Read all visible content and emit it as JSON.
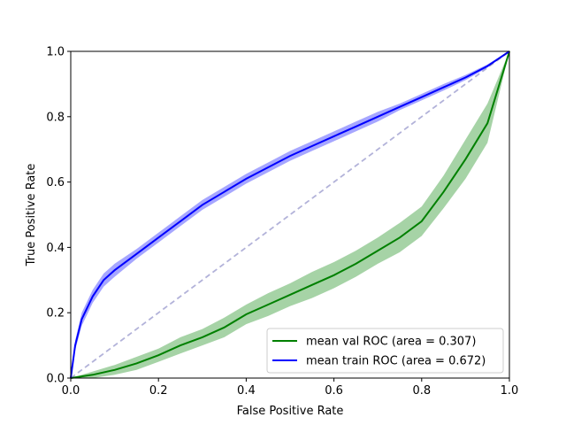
{
  "chart_data": {
    "type": "line",
    "title": "",
    "xlabel": "False Positive Rate",
    "ylabel": "True Positive Rate",
    "xlim": [
      0.0,
      1.0
    ],
    "ylim": [
      0.0,
      1.0
    ],
    "xticks": [
      "0.0",
      "0.2",
      "0.4",
      "0.6",
      "0.8",
      "1.0"
    ],
    "yticks": [
      "0.0",
      "0.2",
      "0.4",
      "0.6",
      "0.8",
      "1.0"
    ],
    "grid": false,
    "legend_position": "lower-right",
    "series": [
      {
        "name": "mean val ROC (area = 0.307)",
        "color": "#008000",
        "band": "±1 std (shaded)",
        "x": [
          0.0,
          0.05,
          0.1,
          0.15,
          0.2,
          0.25,
          0.3,
          0.35,
          0.4,
          0.45,
          0.5,
          0.55,
          0.6,
          0.65,
          0.7,
          0.75,
          0.8,
          0.85,
          0.9,
          0.95,
          1.0
        ],
        "y": [
          0.0,
          0.01,
          0.025,
          0.045,
          0.07,
          0.1,
          0.125,
          0.155,
          0.195,
          0.225,
          0.255,
          0.285,
          0.315,
          0.35,
          0.39,
          0.43,
          0.48,
          0.57,
          0.67,
          0.78,
          1.0
        ],
        "y_std": [
          0.0,
          0.01,
          0.015,
          0.02,
          0.02,
          0.025,
          0.025,
          0.03,
          0.03,
          0.035,
          0.035,
          0.04,
          0.04,
          0.04,
          0.04,
          0.045,
          0.045,
          0.05,
          0.06,
          0.06,
          0.0
        ]
      },
      {
        "name": "mean train ROC (area = 0.672)",
        "color": "#0000ff",
        "band": "±1 std (shaded)",
        "x": [
          0.0,
          0.01,
          0.025,
          0.05,
          0.075,
          0.1,
          0.15,
          0.2,
          0.25,
          0.3,
          0.35,
          0.4,
          0.45,
          0.5,
          0.55,
          0.6,
          0.65,
          0.7,
          0.75,
          0.8,
          0.85,
          0.9,
          0.95,
          1.0
        ],
        "y": [
          0.0,
          0.1,
          0.18,
          0.25,
          0.3,
          0.33,
          0.38,
          0.43,
          0.48,
          0.53,
          0.57,
          0.61,
          0.645,
          0.68,
          0.71,
          0.74,
          0.77,
          0.8,
          0.83,
          0.86,
          0.89,
          0.92,
          0.955,
          1.0
        ],
        "y_std": [
          0.0,
          0.015,
          0.02,
          0.02,
          0.02,
          0.02,
          0.015,
          0.015,
          0.015,
          0.015,
          0.015,
          0.015,
          0.015,
          0.015,
          0.015,
          0.015,
          0.015,
          0.015,
          0.01,
          0.01,
          0.01,
          0.008,
          0.005,
          0.0
        ]
      },
      {
        "name": "",
        "role": "chance diagonal",
        "color": "#000080",
        "style": "dashed",
        "x": [
          0.0,
          1.0
        ],
        "y": [
          0.0,
          1.0
        ]
      }
    ]
  }
}
